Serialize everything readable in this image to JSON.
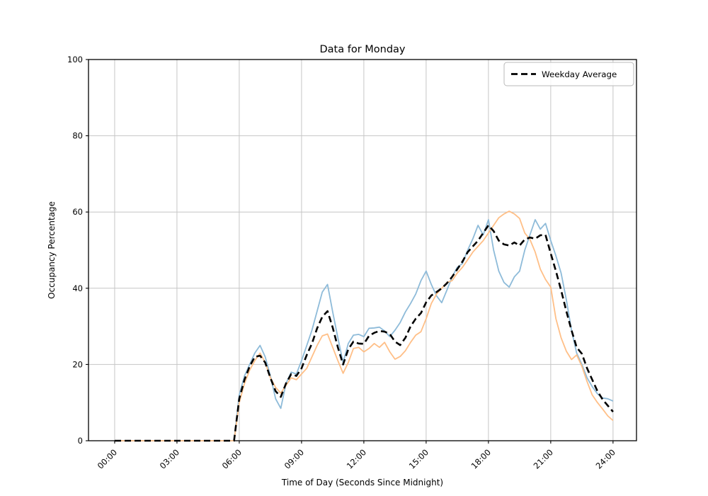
{
  "chart_data": {
    "type": "line",
    "title": "Data for Monday",
    "xlabel": "Time of Day (Seconds Since Midnight)",
    "ylabel": "Occupancy Percentage",
    "xlim": [
      -1.26,
      25.13
    ],
    "ylim": [
      0,
      100
    ],
    "grid": true,
    "legend_position": "upper right",
    "legend_label": "Weekday Average",
    "x_ticks": {
      "positions": [
        0,
        3,
        6,
        9,
        12,
        15,
        18,
        21,
        24
      ],
      "labels": [
        "00:00",
        "03:00",
        "06:00",
        "09:00",
        "12:00",
        "15:00",
        "18:00",
        "21:00",
        "24:00"
      ]
    },
    "y_ticks": {
      "positions": [
        0,
        20,
        40,
        60,
        80,
        100
      ],
      "labels": [
        "0",
        "20",
        "40",
        "60",
        "80",
        "100"
      ]
    },
    "x": [
      0,
      0.25,
      0.5,
      0.75,
      1,
      1.25,
      1.5,
      1.75,
      2,
      2.25,
      2.5,
      2.75,
      3,
      3.25,
      3.5,
      3.75,
      4,
      4.25,
      4.5,
      4.75,
      5,
      5.25,
      5.5,
      5.75,
      6,
      6.25,
      6.5,
      6.75,
      7,
      7.25,
      7.5,
      7.75,
      8,
      8.25,
      8.5,
      8.75,
      9,
      9.25,
      9.5,
      9.75,
      10,
      10.25,
      10.5,
      10.75,
      11,
      11.25,
      11.5,
      11.75,
      12,
      12.25,
      12.5,
      12.75,
      13,
      13.25,
      13.5,
      13.75,
      14,
      14.25,
      14.5,
      14.75,
      15,
      15.25,
      15.5,
      15.75,
      16,
      16.25,
      16.5,
      16.75,
      17,
      17.25,
      17.5,
      17.75,
      18,
      18.25,
      18.5,
      18.75,
      19,
      19.25,
      19.5,
      19.75,
      20,
      20.25,
      20.5,
      20.75,
      21,
      21.25,
      21.5,
      21.75,
      22,
      22.25,
      22.5,
      22.75,
      23,
      23.25,
      23.5,
      23.75,
      24
    ],
    "series": [
      {
        "name": "series-1-light-blue",
        "legend_label": null,
        "color": "#8ebbd9",
        "width": 1.8,
        "dash": null,
        "values": [
          0,
          0,
          0,
          0,
          0,
          0,
          0,
          0,
          0,
          0,
          0,
          0,
          0,
          0,
          0,
          0,
          0,
          0,
          0,
          0,
          0,
          0,
          0,
          0,
          12,
          17,
          20,
          23,
          25,
          22,
          17,
          11,
          8.5,
          15,
          18,
          17.5,
          21,
          25,
          29,
          34,
          39,
          41,
          33.8,
          27,
          20.5,
          25.5,
          27.7,
          27.9,
          27.3,
          29.5,
          29.6,
          29.8,
          28.8,
          27.3,
          29,
          31,
          33.8,
          36,
          38.5,
          42,
          44.5,
          41,
          38,
          36.2,
          39.5,
          43,
          45.5,
          46.5,
          50,
          53,
          56.5,
          54,
          58,
          50,
          44.5,
          41.5,
          40.3,
          43,
          44.5,
          50,
          54,
          58,
          55.5,
          57,
          52.5,
          48.5,
          44,
          37,
          29,
          23,
          20,
          16.5,
          14.2,
          12.3,
          11.2,
          11,
          10.4
        ]
      },
      {
        "name": "series-2-light-orange",
        "legend_label": null,
        "color": "#ffbf87",
        "width": 1.8,
        "dash": null,
        "values": [
          0,
          0,
          0,
          0,
          0,
          0,
          0,
          0,
          0,
          0,
          0,
          0,
          0,
          0,
          0,
          0,
          0,
          0,
          0,
          0,
          0,
          0,
          0,
          0,
          10,
          15,
          18.5,
          21,
          23,
          20.5,
          16.5,
          14,
          12.5,
          14.5,
          16.5,
          16,
          17.5,
          19,
          22,
          25,
          27.5,
          28,
          24.5,
          21,
          17.7,
          20.5,
          24.2,
          24.5,
          23.3,
          24.2,
          25.5,
          24.5,
          25.8,
          23.3,
          21.4,
          22.1,
          23.6,
          25.8,
          27.7,
          28.6,
          32,
          36,
          38.5,
          40,
          41.5,
          42,
          44,
          45.5,
          47.5,
          49.5,
          51,
          52.5,
          54.5,
          56.5,
          58.5,
          59.5,
          60.2,
          59.5,
          58.3,
          54.5,
          52.8,
          49.5,
          45,
          42.3,
          40.3,
          32,
          27,
          23.5,
          21.3,
          22.5,
          19.5,
          15.5,
          12,
          10,
          8.3,
          6.5,
          5.3
        ]
      },
      {
        "name": "weekday-average",
        "legend_label": "Weekday Average",
        "color": "#000000",
        "width": 2.6,
        "dash": "9 5",
        "values": [
          0,
          0,
          0,
          0,
          0,
          0,
          0,
          0,
          0,
          0,
          0,
          0,
          0,
          0,
          0,
          0,
          0,
          0,
          0,
          0,
          0,
          0,
          0,
          0,
          11,
          16,
          19.5,
          22,
          22.3,
          20.5,
          16.5,
          13,
          11.5,
          15,
          17.5,
          17,
          19,
          22.5,
          25.5,
          29.5,
          32.5,
          34,
          29.7,
          24.5,
          20,
          24,
          26,
          25.5,
          25.4,
          27.5,
          28.3,
          28.8,
          28.6,
          28,
          26,
          25.1,
          27,
          30,
          32,
          33.5,
          36.3,
          38.1,
          39,
          40,
          41.3,
          43,
          45,
          47,
          49.5,
          51,
          52.5,
          54.5,
          56.5,
          55,
          52.5,
          51.5,
          51.2,
          52,
          51.2,
          52.8,
          53.3,
          53,
          53.9,
          54,
          49.1,
          44.5,
          39.5,
          34,
          29,
          24.5,
          22.8,
          19,
          16,
          13,
          10.8,
          9.2,
          7.6
        ]
      }
    ]
  }
}
